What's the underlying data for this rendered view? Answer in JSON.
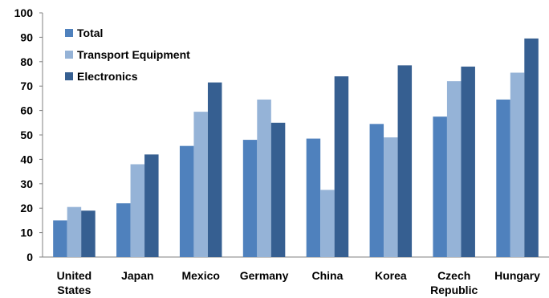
{
  "chart_data": {
    "type": "bar",
    "categories": [
      [
        "United",
        "States"
      ],
      [
        "Japan"
      ],
      [
        "Mexico"
      ],
      [
        "Germany"
      ],
      [
        "China"
      ],
      [
        "Korea"
      ],
      [
        "Czech",
        "Republic"
      ],
      [
        "Hungary"
      ]
    ],
    "series": [
      {
        "name": "Total",
        "color": "#4f81bd",
        "values": [
          15,
          22,
          45.5,
          48,
          48.5,
          54.5,
          57.5,
          64.5
        ]
      },
      {
        "name": "Transport Equipment",
        "color": "#95b3d7",
        "values": [
          20.5,
          38,
          59.5,
          64.5,
          27.5,
          49,
          72,
          75.5
        ]
      },
      {
        "name": "Electronics",
        "color": "#365f91",
        "values": [
          19,
          42,
          71.5,
          55,
          74,
          78.5,
          78,
          89.5
        ]
      }
    ],
    "ylim": [
      0,
      100
    ],
    "yticks": [
      0,
      10,
      20,
      30,
      40,
      50,
      60,
      70,
      80,
      90,
      100
    ],
    "legend_position": "top-left",
    "grid": false
  }
}
